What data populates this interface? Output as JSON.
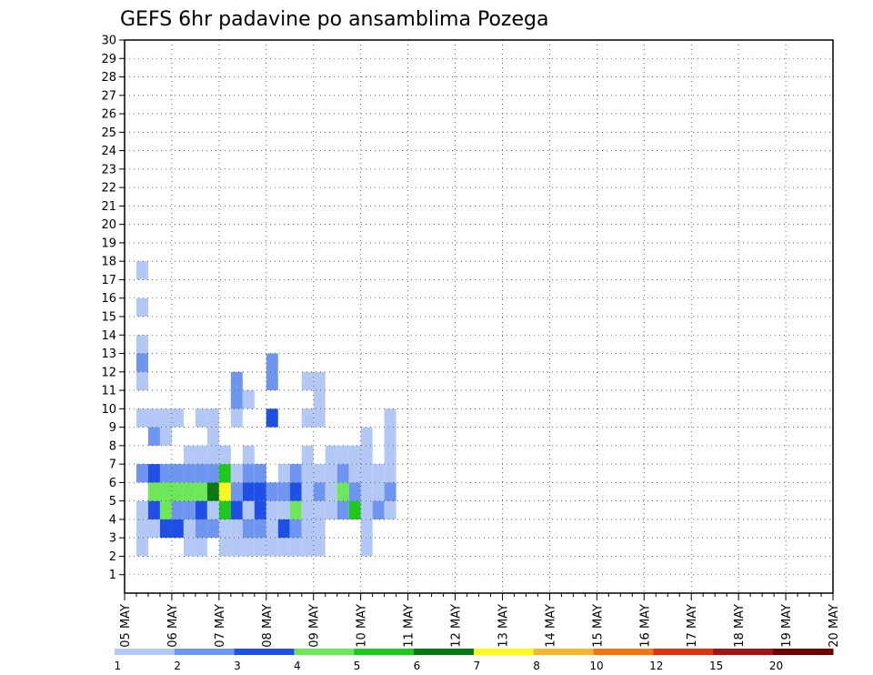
{
  "chart_data": {
    "type": "heatmap",
    "title": "GEFS 6hr padavine po ansamblima Pozega",
    "xlabel": "",
    "ylabel": "",
    "x_ticks": [
      "05 MAY",
      "06 MAY",
      "07 MAY",
      "08 MAY",
      "09 MAY",
      "10 MAY",
      "11 MAY",
      "12 MAY",
      "13 MAY",
      "14 MAY",
      "15 MAY",
      "16 MAY",
      "17 MAY",
      "18 MAY",
      "19 MAY",
      "20 MAY"
    ],
    "y_ticks": [
      1,
      2,
      3,
      4,
      5,
      6,
      7,
      8,
      9,
      10,
      11,
      12,
      13,
      14,
      15,
      16,
      17,
      18,
      19,
      20,
      21,
      22,
      23,
      24,
      25,
      26,
      27,
      28,
      29,
      30
    ],
    "y_range": [
      0,
      30
    ],
    "x_range_days": [
      0,
      15
    ],
    "steps_per_day": 4,
    "grid": true,
    "colorbar": {
      "labels": [
        "1",
        "2",
        "3",
        "4",
        "5",
        "6",
        "7",
        "8",
        "10",
        "12",
        "15",
        "20"
      ],
      "colors": [
        "#b4c8f5",
        "#5a8cf0",
        "#1e46dc",
        "#1e46dc",
        "#78f050",
        "#28c828",
        "#0a7814",
        "#fafa1e",
        "#f5b432",
        "#f07814",
        "#dc3214",
        "#a01414",
        "#6e0000"
      ],
      "bands": [
        {
          "color": "#b4c8f5"
        },
        {
          "color": "#6e96f0"
        },
        {
          "color": "#1e50e6"
        },
        {
          "color": "#6ee65a"
        },
        {
          "color": "#1ec81e"
        },
        {
          "color": "#0a7814"
        },
        {
          "color": "#fafa1e"
        },
        {
          "color": "#f5b432"
        },
        {
          "color": "#f07814"
        },
        {
          "color": "#dc3214"
        },
        {
          "color": "#a01414"
        },
        {
          "color": "#6e0000"
        }
      ]
    },
    "cells": [
      [
        3,
        1,
        0
      ],
      [
        4,
        1,
        0
      ],
      [
        5,
        1,
        0
      ],
      [
        7,
        1,
        1
      ],
      [
        10,
        1,
        0
      ],
      [
        12,
        1,
        0
      ],
      [
        13,
        1,
        1
      ],
      [
        14,
        1,
        0
      ],
      [
        16,
        1,
        0
      ],
      [
        18,
        1,
        0
      ],
      [
        4,
        2,
        0
      ],
      [
        5,
        2,
        2
      ],
      [
        6,
        2,
        3
      ],
      [
        7,
        2,
        2
      ],
      [
        9,
        2,
        1
      ],
      [
        10,
        2,
        0
      ],
      [
        4,
        3,
        2
      ],
      [
        5,
        3,
        3
      ],
      [
        6,
        3,
        3
      ],
      [
        7,
        3,
        1
      ],
      [
        9,
        3,
        0
      ],
      [
        10,
        3,
        0
      ],
      [
        4,
        4,
        2
      ],
      [
        5,
        4,
        1
      ],
      [
        6,
        4,
        3
      ],
      [
        7,
        4,
        1
      ],
      [
        10,
        4,
        0
      ],
      [
        3,
        5,
        0
      ],
      [
        4,
        5,
        0
      ],
      [
        5,
        5,
        1
      ],
      [
        6,
        5,
        3
      ],
      [
        7,
        5,
        1
      ],
      [
        8,
        5,
        0
      ],
      [
        3,
        6,
        0
      ],
      [
        4,
        6,
        1
      ],
      [
        5,
        6,
        2
      ],
      [
        6,
        6,
        3
      ],
      [
        7,
        6,
        1
      ],
      [
        8,
        6,
        0
      ],
      [
        10,
        6,
        0
      ],
      [
        4,
        7,
        1
      ],
      [
        5,
        7,
        0
      ],
      [
        6,
        7,
        5
      ],
      [
        7,
        7,
        1
      ],
      [
        8,
        7,
        0
      ],
      [
        9,
        7,
        0
      ],
      [
        10,
        7,
        0
      ],
      [
        3,
        8,
        0
      ],
      [
        4,
        8,
        0
      ],
      [
        5,
        8,
        4
      ],
      [
        6,
        8,
        6
      ],
      [
        7,
        8,
        4
      ],
      [
        8,
        8,
        0
      ],
      [
        3,
        9,
        0
      ],
      [
        4,
        9,
        0
      ],
      [
        5,
        9,
        2
      ],
      [
        6,
        9,
        1
      ],
      [
        7,
        9,
        0
      ],
      [
        10,
        9,
        0
      ],
      [
        11,
        9,
        1
      ],
      [
        12,
        9,
        1
      ],
      [
        3,
        10,
        0
      ],
      [
        4,
        10,
        1
      ],
      [
        5,
        10,
        0
      ],
      [
        6,
        10,
        2
      ],
      [
        7,
        10,
        1
      ],
      [
        8,
        10,
        0
      ],
      [
        11,
        10,
        0
      ],
      [
        3,
        11,
        0
      ],
      [
        4,
        11,
        1
      ],
      [
        5,
        11,
        2
      ],
      [
        6,
        11,
        2
      ],
      [
        7,
        11,
        1
      ],
      [
        3,
        12,
        0
      ],
      [
        4,
        12,
        0
      ],
      [
        5,
        12,
        0
      ],
      [
        6,
        12,
        1
      ],
      [
        10,
        12,
        2
      ],
      [
        12,
        12,
        1
      ],
      [
        13,
        12,
        1
      ],
      [
        3,
        13,
        0
      ],
      [
        4,
        13,
        2
      ],
      [
        5,
        13,
        0
      ],
      [
        6,
        13,
        1
      ],
      [
        7,
        13,
        0
      ],
      [
        3,
        14,
        0
      ],
      [
        4,
        14,
        1
      ],
      [
        5,
        14,
        3
      ],
      [
        6,
        14,
        2
      ],
      [
        7,
        14,
        1
      ],
      [
        3,
        15,
        0
      ],
      [
        4,
        15,
        0
      ],
      [
        5,
        15,
        0
      ],
      [
        6,
        15,
        0
      ],
      [
        7,
        15,
        0
      ],
      [
        8,
        15,
        0
      ],
      [
        10,
        15,
        0
      ],
      [
        12,
        15,
        0
      ],
      [
        3,
        16,
        0
      ],
      [
        4,
        16,
        0
      ],
      [
        5,
        16,
        0
      ],
      [
        6,
        16,
        1
      ],
      [
        7,
        16,
        0
      ],
      [
        10,
        16,
        0
      ],
      [
        11,
        16,
        0
      ],
      [
        12,
        16,
        0
      ],
      [
        5,
        17,
        0
      ],
      [
        6,
        17,
        0
      ],
      [
        7,
        17,
        0
      ],
      [
        8,
        17,
        0
      ],
      [
        5,
        18,
        1
      ],
      [
        6,
        18,
        3
      ],
      [
        7,
        18,
        1
      ],
      [
        8,
        18,
        0
      ],
      [
        5,
        19,
        4
      ],
      [
        6,
        19,
        1
      ],
      [
        7,
        19,
        0
      ],
      [
        8,
        19,
        0
      ],
      [
        3,
        20,
        0
      ],
      [
        4,
        20,
        0
      ],
      [
        5,
        20,
        0
      ],
      [
        6,
        20,
        0
      ],
      [
        7,
        20,
        0
      ],
      [
        8,
        20,
        0
      ],
      [
        9,
        20,
        0
      ],
      [
        5,
        21,
        1
      ],
      [
        6,
        21,
        0
      ],
      [
        7,
        21,
        0
      ],
      [
        5,
        22,
        0
      ],
      [
        6,
        22,
        1
      ],
      [
        7,
        22,
        0
      ],
      [
        8,
        22,
        0
      ],
      [
        9,
        22,
        0
      ],
      [
        10,
        22,
        0
      ]
    ]
  }
}
